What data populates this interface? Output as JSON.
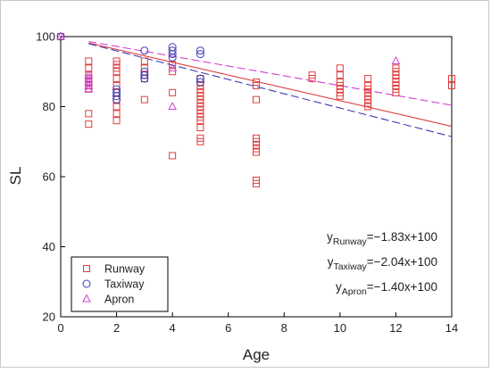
{
  "chart_data": {
    "type": "scatter",
    "xlabel": "Age",
    "ylabel": "SL",
    "xlim": [
      0,
      14
    ],
    "ylim": [
      20,
      100
    ],
    "xticks": [
      0,
      2,
      4,
      6,
      8,
      10,
      12,
      14
    ],
    "yticks": [
      20,
      40,
      60,
      80,
      100
    ],
    "grid": false,
    "legend_position": "bottom-left",
    "series": [
      {
        "name": "Runway",
        "marker": "square",
        "color": "#e03c3c",
        "points": [
          [
            0,
            100
          ],
          [
            1,
            93
          ],
          [
            1,
            91
          ],
          [
            1,
            89
          ],
          [
            1,
            88
          ],
          [
            1,
            87
          ],
          [
            1,
            86
          ],
          [
            1,
            85
          ],
          [
            1,
            78
          ],
          [
            1,
            75
          ],
          [
            2,
            93
          ],
          [
            2,
            92
          ],
          [
            2,
            91
          ],
          [
            2,
            90
          ],
          [
            2,
            88
          ],
          [
            2,
            86
          ],
          [
            2,
            84
          ],
          [
            2,
            82
          ],
          [
            2,
            80
          ],
          [
            2,
            78
          ],
          [
            2,
            76
          ],
          [
            3,
            93
          ],
          [
            3,
            91
          ],
          [
            3,
            89
          ],
          [
            3,
            88
          ],
          [
            3,
            82
          ],
          [
            4,
            92
          ],
          [
            4,
            90
          ],
          [
            4,
            84
          ],
          [
            4,
            66
          ],
          [
            5,
            88
          ],
          [
            5,
            86
          ],
          [
            5,
            85
          ],
          [
            5,
            84
          ],
          [
            5,
            83
          ],
          [
            5,
            82
          ],
          [
            5,
            81
          ],
          [
            5,
            80
          ],
          [
            5,
            79
          ],
          [
            5,
            78
          ],
          [
            5,
            77
          ],
          [
            5,
            76
          ],
          [
            5,
            74
          ],
          [
            5,
            71
          ],
          [
            5,
            70
          ],
          [
            7,
            87
          ],
          [
            7,
            86
          ],
          [
            7,
            82
          ],
          [
            7,
            71
          ],
          [
            7,
            70
          ],
          [
            7,
            69
          ],
          [
            7,
            68
          ],
          [
            7,
            67
          ],
          [
            7,
            59
          ],
          [
            7,
            58
          ],
          [
            9,
            89
          ],
          [
            9,
            88
          ],
          [
            10,
            91
          ],
          [
            10,
            89
          ],
          [
            10,
            87
          ],
          [
            10,
            86
          ],
          [
            10,
            85
          ],
          [
            10,
            84
          ],
          [
            10,
            83
          ],
          [
            11,
            88
          ],
          [
            11,
            86
          ],
          [
            11,
            85
          ],
          [
            11,
            84
          ],
          [
            11,
            83
          ],
          [
            11,
            82
          ],
          [
            11,
            81
          ],
          [
            11,
            80
          ],
          [
            12,
            91
          ],
          [
            12,
            90
          ],
          [
            12,
            89
          ],
          [
            12,
            88
          ],
          [
            12,
            87
          ],
          [
            12,
            86
          ],
          [
            12,
            85
          ],
          [
            12,
            84
          ],
          [
            14,
            88
          ],
          [
            14,
            86
          ]
        ]
      },
      {
        "name": "Taxiway",
        "marker": "circle",
        "color": "#3b3bb5",
        "points": [
          [
            0,
            100
          ],
          [
            2,
            85
          ],
          [
            2,
            84
          ],
          [
            2,
            83
          ],
          [
            2,
            82
          ],
          [
            3,
            96
          ],
          [
            3,
            90
          ],
          [
            3,
            89
          ],
          [
            3,
            88
          ],
          [
            4,
            97
          ],
          [
            4,
            96
          ],
          [
            4,
            95
          ],
          [
            4,
            94
          ],
          [
            5,
            96
          ],
          [
            5,
            95
          ],
          [
            5,
            88
          ],
          [
            5,
            87
          ]
        ]
      },
      {
        "name": "Apron",
        "marker": "triangle",
        "color": "#d040d0",
        "points": [
          [
            0,
            100
          ],
          [
            1,
            89
          ],
          [
            1,
            88
          ],
          [
            1,
            87
          ],
          [
            1,
            86
          ],
          [
            1,
            85
          ],
          [
            4,
            91
          ],
          [
            4,
            80
          ],
          [
            12,
            93
          ]
        ]
      }
    ],
    "fit_lines": [
      {
        "series": "Runway",
        "slope": -1.83,
        "intercept": 100,
        "x_range": [
          1,
          14
        ],
        "color": "#e03c3c",
        "style": "solid"
      },
      {
        "series": "Taxiway",
        "slope": -2.04,
        "intercept": 100,
        "x_range": [
          1,
          14
        ],
        "color": "#3b3bb5",
        "style": "dashed"
      },
      {
        "series": "Apron",
        "slope": -1.4,
        "intercept": 100,
        "x_range": [
          1,
          14
        ],
        "color": "#d040d0",
        "style": "dashed"
      }
    ],
    "equations": [
      {
        "y": "y",
        "sub": "Runway",
        "rhs": "=−1.83x+100"
      },
      {
        "y": "y",
        "sub": "Taxiway",
        "rhs": "=−2.04x+100"
      },
      {
        "y": "y",
        "sub": "Apron",
        "rhs": "=−1.40x+100"
      }
    ]
  }
}
